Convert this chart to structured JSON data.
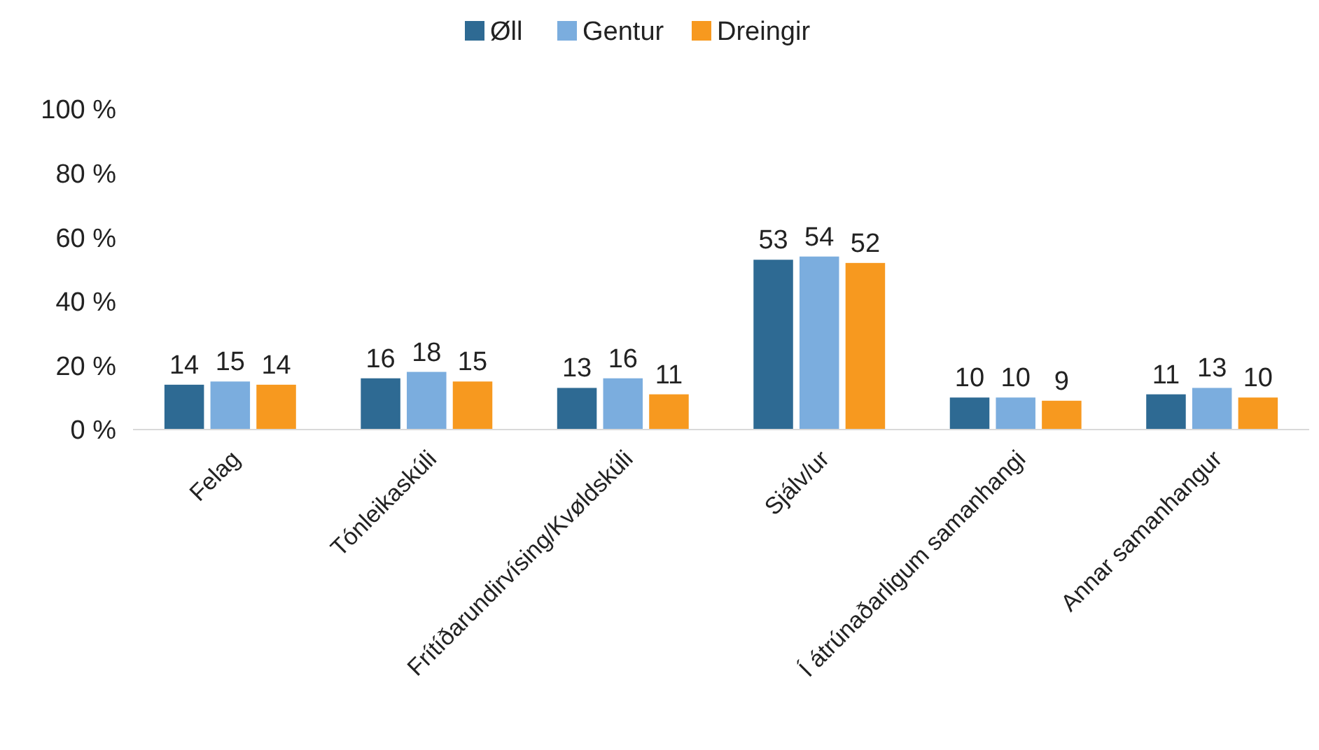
{
  "chart_data": {
    "type": "bar",
    "categories": [
      "Felag",
      "Tónleikaskúli",
      "Frítíðarundirvísing/Kvøldskúli",
      "Sjálv/ur",
      "Í átrúnaðarligum samanhangi",
      "Annar samanhangur"
    ],
    "series": [
      {
        "name": "Øll",
        "color": "#2e6a93",
        "values": [
          14,
          16,
          13,
          53,
          10,
          11
        ]
      },
      {
        "name": "Gentur",
        "color": "#7badde",
        "values": [
          15,
          18,
          16,
          54,
          10,
          13
        ]
      },
      {
        "name": "Dreingir",
        "color": "#f7991f",
        "values": [
          14,
          15,
          11,
          52,
          9,
          10
        ]
      }
    ],
    "ylim": [
      0,
      100
    ],
    "yticks": [
      {
        "value": 0,
        "label": "0 %"
      },
      {
        "value": 20,
        "label": "20 %"
      },
      {
        "value": 40,
        "label": "40 %"
      },
      {
        "value": 60,
        "label": "60 %"
      },
      {
        "value": 80,
        "label": "80 %"
      },
      {
        "value": 100,
        "label": "100 %"
      }
    ],
    "data_labels": true,
    "grid": false,
    "legend": "top"
  }
}
